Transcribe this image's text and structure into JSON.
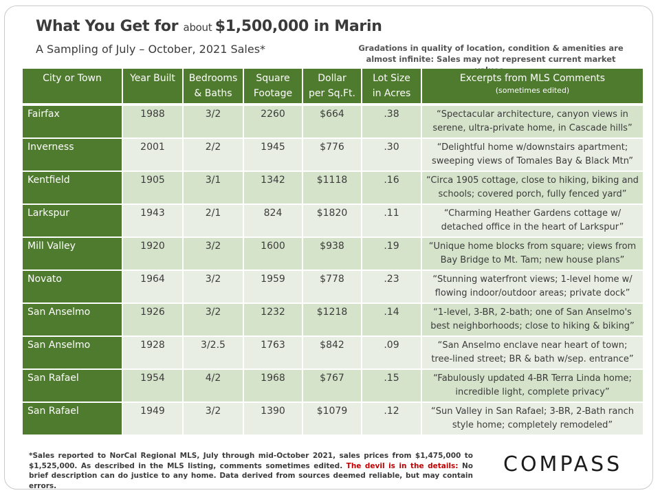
{
  "header": {
    "title_part1": "What You Get for ",
    "title_small": "about ",
    "title_part2": "$1,500,000 in Marin",
    "subtitle": "A Sampling of July – October, 2021 Sales*",
    "note": "Gradations in quality of location, condition & amenities are almost infinite: Sales may not represent current market values."
  },
  "table": {
    "headers": {
      "city": "City or Town",
      "year": "Year Built",
      "beds_line1": "Bedrooms",
      "beds_line2": "& Baths",
      "sqft_line1": "Square",
      "sqft_line2": "Footage",
      "ppsf_line1": "Dollar",
      "ppsf_line2": "per Sq.Ft.",
      "lot_line1": "Lot Size",
      "lot_line2": "in Acres",
      "comments": "Excerpts from MLS Comments",
      "comments_sub": "(sometimes edited)"
    },
    "rows": [
      {
        "city": "Fairfax",
        "year": "1988",
        "beds": "3/2",
        "sqft": "2260",
        "ppsf": "$664",
        "lot": ".38",
        "c1": "“Spectacular architecture, canyon views in",
        "c2": "serene, ultra-private home, in Cascade hills”"
      },
      {
        "city": "Inverness",
        "year": "2001",
        "beds": "2/2",
        "sqft": "1945",
        "ppsf": "$776",
        "lot": ".30",
        "c1": "“Delightful home w/downstairs apartment;",
        "c2": "sweeping views of Tomales Bay & Black Mtn”"
      },
      {
        "city": "Kentfield",
        "year": "1905",
        "beds": "3/1",
        "sqft": "1342",
        "ppsf": "$1118",
        "lot": ".16",
        "c1": "“Circa 1905 cottage, close to hiking, biking and",
        "c2": "schools; covered porch, fully fenced yard”"
      },
      {
        "city": "Larkspur",
        "year": "1943",
        "beds": "2/1",
        "sqft": "824",
        "ppsf": "$1820",
        "lot": ".11",
        "c1": "“Charming Heather Gardens cottage w/",
        "c2": "detached office in the heart of Larkspur”"
      },
      {
        "city": "Mill Valley",
        "year": "1920",
        "beds": "3/2",
        "sqft": "1600",
        "ppsf": "$938",
        "lot": ".19",
        "c1": "“Unique home blocks from square; views from",
        "c2": "Bay Bridge to Mt. Tam; new house plans”"
      },
      {
        "city": "Novato",
        "year": "1964",
        "beds": "3/2",
        "sqft": "1959",
        "ppsf": "$778",
        "lot": ".23",
        "c1": "“Stunning waterfront views; 1-level home w/",
        "c2": "flowing indoor/outdoor areas; private dock”"
      },
      {
        "city": "San Anselmo",
        "year": "1926",
        "beds": "3/2",
        "sqft": "1232",
        "ppsf": "$1218",
        "lot": ".14",
        "c1": "“1-level, 3-BR, 2-bath; one of San Anselmo's",
        "c2": "best neighborhoods; close to hiking & biking”"
      },
      {
        "city": "San Anselmo",
        "year": "1928",
        "beds": "3/2.5",
        "sqft": "1763",
        "ppsf": "$842",
        "lot": ".09",
        "c1": "“San Anselmo enclave near heart of town;",
        "c2": "tree-lined street; BR & bath w/sep. entrance”"
      },
      {
        "city": "San Rafael",
        "year": "1954",
        "beds": "4/2",
        "sqft": "1968",
        "ppsf": "$767",
        "lot": ".15",
        "c1": "“Fabulously updated 4-BR Terra Linda home;",
        "c2": "incredible light, complete privacy”"
      },
      {
        "city": "San Rafael",
        "year": "1949",
        "beds": "3/2",
        "sqft": "1390",
        "ppsf": "$1079",
        "lot": ".12",
        "c1": "“Sun Valley in San Rafael; 3-BR, 2-Bath ranch",
        "c2": "style home; completely remodeled”"
      }
    ]
  },
  "footer": {
    "text1": "*Sales reported to NorCal Regional MLS, July through mid-October 2021, sales prices from $1,475,000 to $1,525,000. As described in the MLS listing, comments sometimes edited. ",
    "red": "The devil is in the details:",
    "text2": " No brief description can do justice to any home. Data derived from sources deemed reliable, but may contain errors."
  },
  "logo": {
    "text": "COMPASS"
  },
  "colors": {
    "header_green": "#4f7b2f",
    "row_green": "#d6e3cb",
    "row_light": "#e8eee3",
    "accent_red": "#c00000"
  }
}
